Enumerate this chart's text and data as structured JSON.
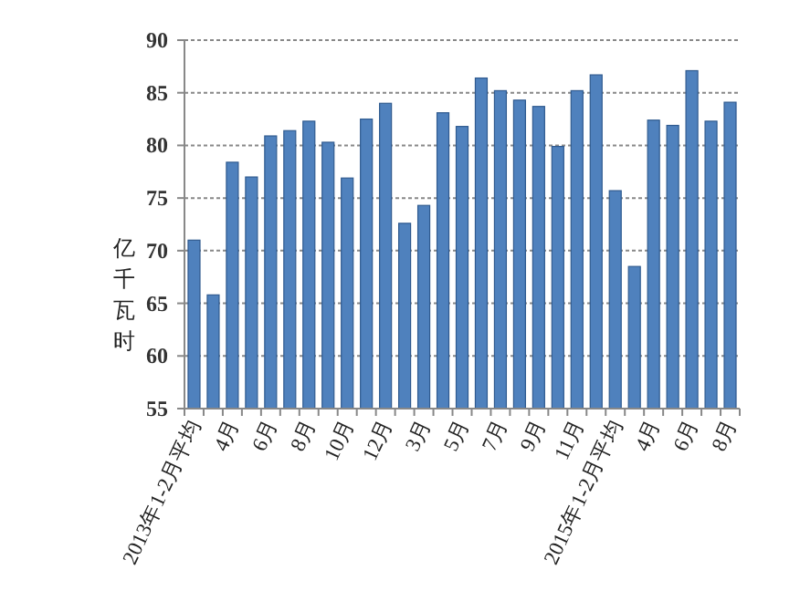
{
  "chart_data": {
    "type": "bar",
    "ylabel": "亿千瓦时",
    "categories": [
      "2013年1-2月平均",
      null,
      "4月",
      null,
      "6月",
      null,
      "8月",
      null,
      "10月",
      null,
      "12月",
      null,
      "3月",
      null,
      "5月",
      null,
      "7月",
      null,
      "9月",
      null,
      "11月",
      null,
      "2015年1-2月平均",
      null,
      "4月",
      null,
      "6月",
      null,
      "8月"
    ],
    "values": [
      71.0,
      65.8,
      78.4,
      77.0,
      80.9,
      81.4,
      82.3,
      80.3,
      76.9,
      82.5,
      84.0,
      72.6,
      74.3,
      83.1,
      81.8,
      86.4,
      85.2,
      84.3,
      83.7,
      79.9,
      85.2,
      86.7,
      75.7,
      68.5,
      82.4,
      81.9,
      87.1,
      82.3,
      84.1
    ],
    "color": "#4f81bd",
    "ylim": [
      55,
      90
    ],
    "yticks": [
      55,
      60,
      65,
      70,
      75,
      80,
      85,
      90
    ],
    "grid": "y"
  }
}
